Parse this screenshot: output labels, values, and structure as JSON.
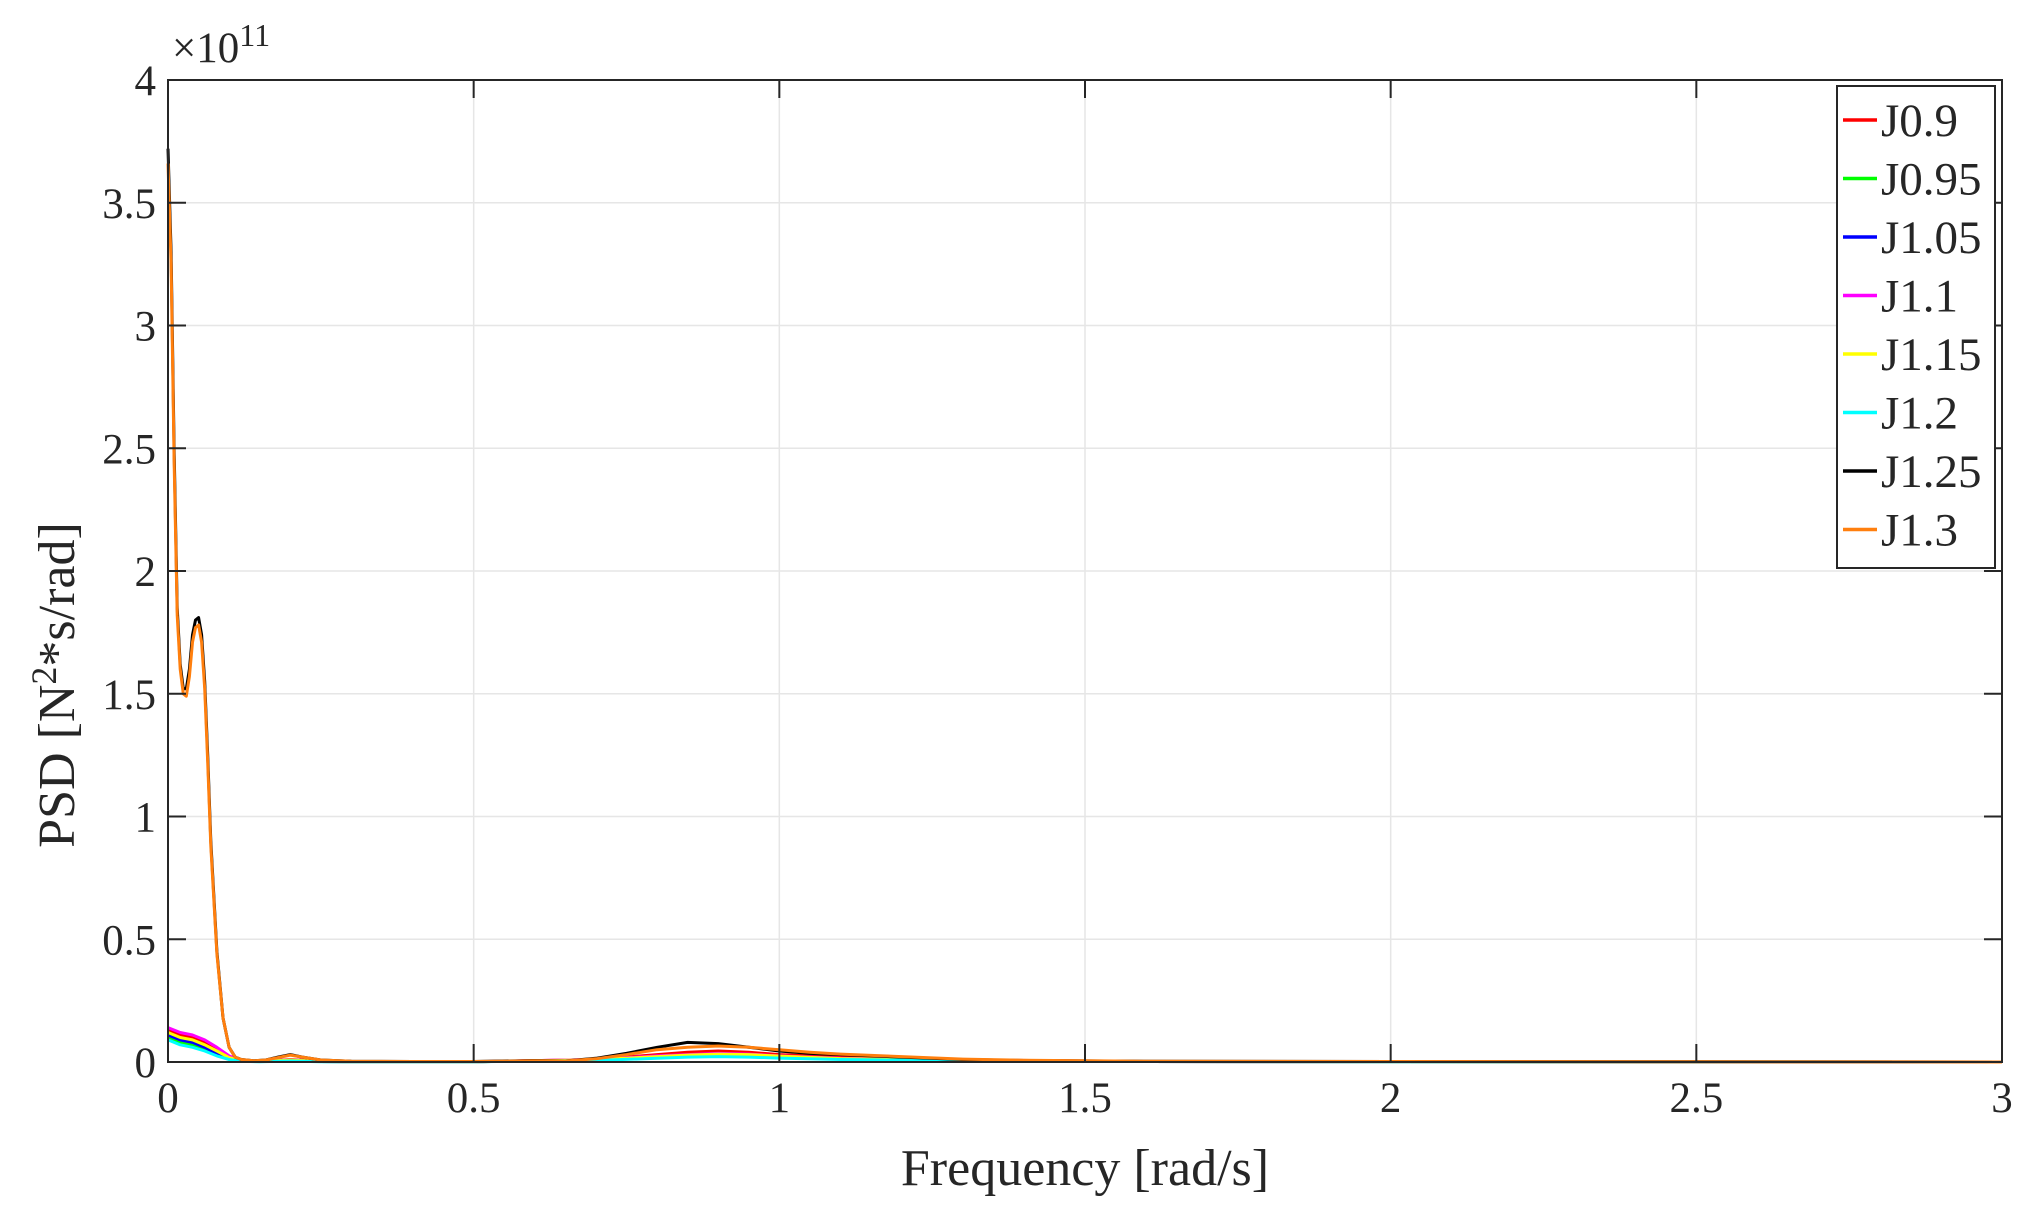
{
  "chart_data": {
    "type": "line",
    "title": "",
    "xlabel": "Frequency [rad/s]",
    "ylabel_main": "PSD [N",
    "ylabel_sup": "2",
    "ylabel_rest": "*s/rad]",
    "y_multiplier_base": "×10",
    "y_multiplier_exp": "11",
    "xlim": [
      0,
      3
    ],
    "ylim": [
      0,
      4
    ],
    "xticks": [
      0,
      0.5,
      1,
      1.5,
      2,
      2.5,
      3
    ],
    "xtick_labels": [
      "0",
      "0.5",
      "1",
      "1.5",
      "2",
      "2.5",
      "3"
    ],
    "yticks": [
      0,
      0.5,
      1,
      1.5,
      2,
      2.5,
      3,
      3.5,
      4
    ],
    "ytick_labels": [
      "0",
      "0.5",
      "1",
      "1.5",
      "2",
      "2.5",
      "3",
      "3.5",
      "4"
    ],
    "grid": true,
    "legend_position": "top-right",
    "series": [
      {
        "name": "J0.9",
        "color": "#ff0000",
        "x": [
          0,
          0.02,
          0.04,
          0.06,
          0.08,
          0.1,
          0.12,
          0.15,
          0.2,
          0.25,
          0.3,
          0.5,
          0.7,
          0.8,
          0.85,
          0.9,
          0.95,
          1.0,
          1.1,
          1.3,
          1.6,
          2.0,
          2.5,
          3.0
        ],
        "y": [
          0.13,
          0.11,
          0.1,
          0.08,
          0.05,
          0.02,
          0.005,
          0.002,
          0.01,
          0.003,
          0.001,
          0.001,
          0.01,
          0.03,
          0.04,
          0.045,
          0.04,
          0.03,
          0.02,
          0.008,
          0.002,
          0.001,
          0.0005,
          0
        ]
      },
      {
        "name": "J0.95",
        "color": "#00ff00",
        "x": [
          0,
          0.02,
          0.04,
          0.06,
          0.08,
          0.1,
          0.12,
          0.15,
          0.2,
          0.25,
          0.3,
          0.5,
          0.7,
          0.8,
          0.85,
          0.9,
          0.95,
          1.0,
          1.1,
          1.3,
          1.6,
          2.0,
          2.5,
          3.0
        ],
        "y": [
          0.1,
          0.08,
          0.07,
          0.05,
          0.03,
          0.012,
          0.004,
          0.002,
          0.008,
          0.002,
          0.001,
          0.001,
          0.008,
          0.02,
          0.025,
          0.028,
          0.025,
          0.02,
          0.012,
          0.006,
          0.002,
          0.001,
          0.0005,
          0
        ]
      },
      {
        "name": "J1.05",
        "color": "#0000ff",
        "x": [
          0,
          0.02,
          0.04,
          0.06,
          0.08,
          0.1,
          0.12,
          0.15,
          0.2,
          0.25,
          0.3,
          0.5,
          0.7,
          0.8,
          0.85,
          0.9,
          0.95,
          1.0,
          1.1,
          1.3,
          1.6,
          2.0,
          2.5,
          3.0
        ],
        "y": [
          0.11,
          0.09,
          0.08,
          0.06,
          0.035,
          0.014,
          0.004,
          0.002,
          0.008,
          0.002,
          0.001,
          0.001,
          0.008,
          0.02,
          0.025,
          0.03,
          0.028,
          0.022,
          0.014,
          0.006,
          0.002,
          0.001,
          0.0005,
          0
        ]
      },
      {
        "name": "J1.1",
        "color": "#ff00ff",
        "x": [
          0,
          0.02,
          0.04,
          0.06,
          0.08,
          0.1,
          0.12,
          0.15,
          0.2,
          0.25,
          0.3,
          0.5,
          0.7,
          0.8,
          0.85,
          0.9,
          0.95,
          1.0,
          1.1,
          1.3,
          1.6,
          2.0,
          2.5,
          3.0
        ],
        "y": [
          0.14,
          0.12,
          0.11,
          0.09,
          0.06,
          0.025,
          0.006,
          0.002,
          0.009,
          0.002,
          0.001,
          0.001,
          0.01,
          0.025,
          0.03,
          0.035,
          0.032,
          0.025,
          0.015,
          0.007,
          0.002,
          0.001,
          0.0005,
          0
        ]
      },
      {
        "name": "J1.15",
        "color": "#ffff00",
        "x": [
          0,
          0.02,
          0.04,
          0.06,
          0.08,
          0.1,
          0.12,
          0.15,
          0.2,
          0.25,
          0.3,
          0.5,
          0.7,
          0.8,
          0.85,
          0.9,
          0.95,
          1.0,
          1.1,
          1.3,
          1.6,
          2.0,
          2.5,
          3.0
        ],
        "y": [
          0.12,
          0.1,
          0.09,
          0.07,
          0.045,
          0.018,
          0.005,
          0.002,
          0.008,
          0.002,
          0.001,
          0.001,
          0.009,
          0.022,
          0.028,
          0.032,
          0.03,
          0.024,
          0.014,
          0.006,
          0.002,
          0.001,
          0.0005,
          0
        ]
      },
      {
        "name": "J1.2",
        "color": "#00ffff",
        "x": [
          0,
          0.02,
          0.04,
          0.06,
          0.08,
          0.1,
          0.12,
          0.15,
          0.2,
          0.25,
          0.3,
          0.5,
          0.7,
          0.8,
          0.85,
          0.9,
          0.95,
          1.0,
          1.1,
          1.3,
          1.6,
          2.0,
          2.5,
          3.0
        ],
        "y": [
          0.09,
          0.07,
          0.06,
          0.045,
          0.025,
          0.01,
          0.003,
          0.001,
          0.004,
          0.001,
          0.001,
          0.001,
          0.006,
          0.015,
          0.02,
          0.022,
          0.02,
          0.016,
          0.01,
          0.005,
          0.002,
          0.001,
          0.0005,
          0
        ]
      },
      {
        "name": "J1.25",
        "color": "#000000",
        "x": [
          0,
          0.005,
          0.01,
          0.015,
          0.02,
          0.025,
          0.03,
          0.035,
          0.04,
          0.045,
          0.05,
          0.055,
          0.06,
          0.065,
          0.07,
          0.08,
          0.09,
          0.1,
          0.11,
          0.12,
          0.14,
          0.16,
          0.18,
          0.2,
          0.22,
          0.25,
          0.3,
          0.4,
          0.5,
          0.6,
          0.65,
          0.7,
          0.75,
          0.8,
          0.85,
          0.9,
          0.95,
          1.0,
          1.05,
          1.1,
          1.2,
          1.3,
          1.4,
          1.6,
          2.0,
          2.5,
          3.0
        ],
        "y": [
          3.72,
          3.3,
          2.5,
          1.85,
          1.62,
          1.52,
          1.52,
          1.6,
          1.74,
          1.8,
          1.81,
          1.74,
          1.55,
          1.25,
          0.9,
          0.45,
          0.18,
          0.06,
          0.02,
          0.01,
          0.005,
          0.008,
          0.02,
          0.03,
          0.02,
          0.008,
          0.003,
          0.002,
          0.002,
          0.006,
          0.004,
          0.015,
          0.035,
          0.06,
          0.08,
          0.075,
          0.06,
          0.045,
          0.035,
          0.03,
          0.02,
          0.01,
          0.006,
          0.003,
          0.002,
          0.001,
          0
        ]
      },
      {
        "name": "J1.3",
        "color": "#ff7f0e",
        "x": [
          0,
          0.005,
          0.01,
          0.015,
          0.02,
          0.025,
          0.03,
          0.035,
          0.04,
          0.045,
          0.05,
          0.055,
          0.06,
          0.065,
          0.07,
          0.08,
          0.09,
          0.1,
          0.11,
          0.12,
          0.14,
          0.16,
          0.18,
          0.2,
          0.22,
          0.25,
          0.3,
          0.4,
          0.5,
          0.6,
          0.65,
          0.7,
          0.75,
          0.8,
          0.85,
          0.9,
          0.95,
          1.0,
          1.05,
          1.1,
          1.2,
          1.3,
          1.4,
          1.6,
          2.0,
          2.5,
          3.0
        ],
        "y": [
          3.66,
          3.25,
          2.45,
          1.82,
          1.6,
          1.5,
          1.49,
          1.57,
          1.71,
          1.77,
          1.78,
          1.71,
          1.52,
          1.22,
          0.88,
          0.44,
          0.18,
          0.06,
          0.02,
          0.01,
          0.005,
          0.008,
          0.018,
          0.028,
          0.02,
          0.008,
          0.003,
          0.002,
          0.002,
          0.005,
          0.004,
          0.013,
          0.03,
          0.05,
          0.06,
          0.065,
          0.06,
          0.05,
          0.04,
          0.032,
          0.022,
          0.012,
          0.007,
          0.003,
          0.002,
          0.001,
          0
        ]
      }
    ]
  }
}
